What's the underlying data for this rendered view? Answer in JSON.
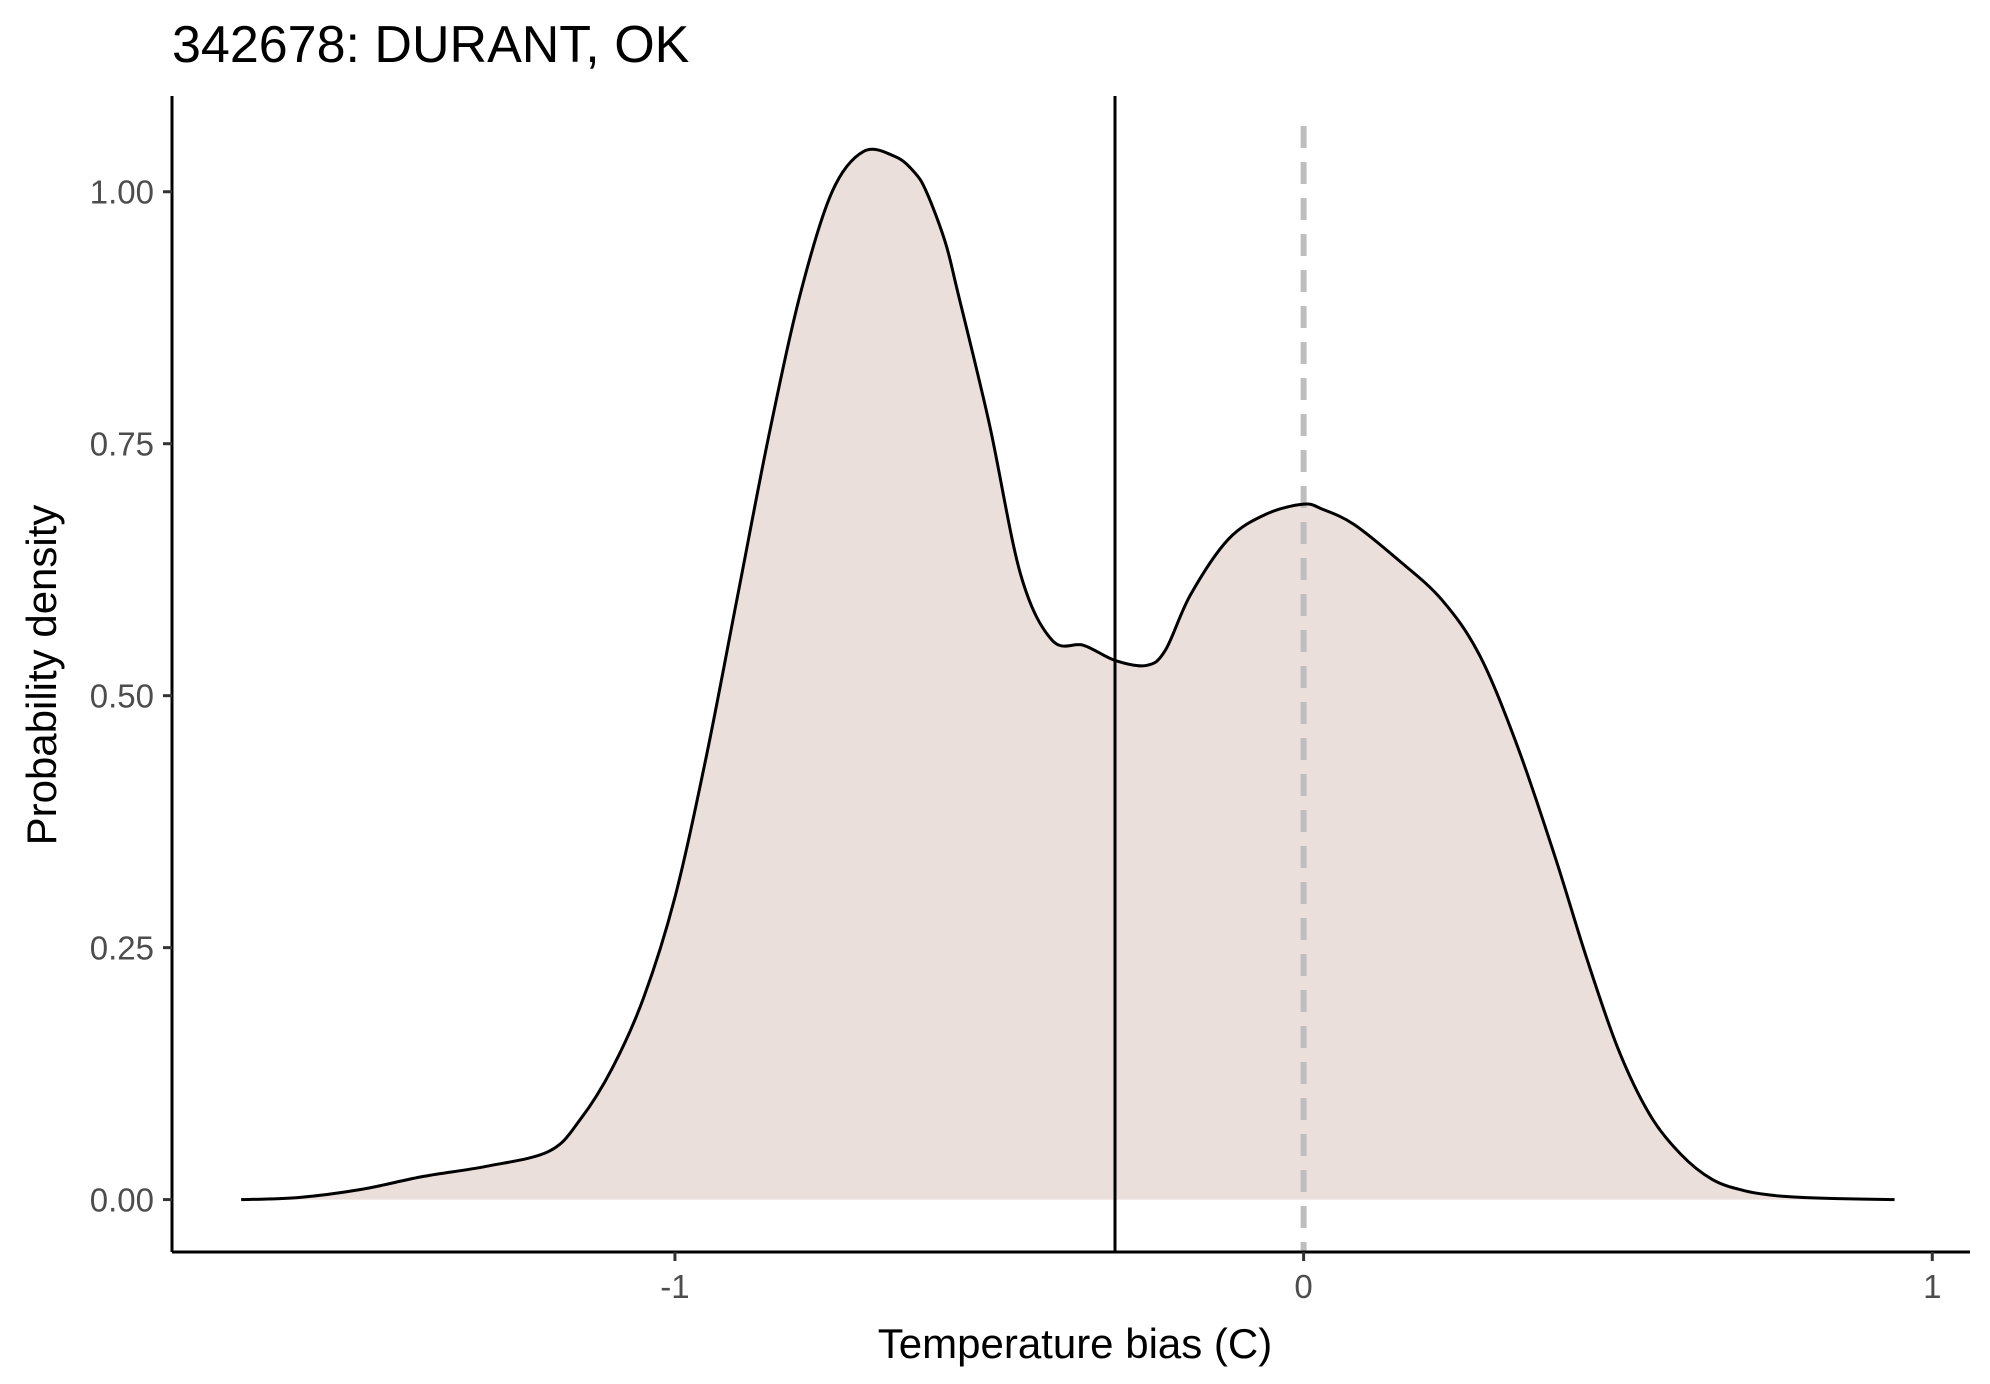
{
  "chart_data": {
    "type": "area",
    "title": "342678: DURANT, OK",
    "xlabel": "Temperature bias (C)",
    "ylabel": "Probability density",
    "xlim": [
      -1.8,
      1.06
    ],
    "ylim": [
      -0.052,
      1.095
    ],
    "x_ticks": [
      -1,
      0,
      1
    ],
    "x_tick_labels": [
      "-1",
      "0",
      "1"
    ],
    "y_ticks": [
      0,
      0.25,
      0.5,
      0.75,
      1.0
    ],
    "y_tick_labels": [
      "0.00",
      "0.25",
      "0.50",
      "0.75",
      "1.00"
    ],
    "grid": false,
    "legend": "none",
    "fill_color": "#ebdfdc",
    "line_color": "#000000",
    "density_curve": {
      "x": [
        -1.69,
        -1.6,
        -1.5,
        -1.4,
        -1.3,
        -1.2,
        -1.15,
        -1.1,
        -1.05,
        -1.0,
        -0.95,
        -0.9,
        -0.85,
        -0.8,
        -0.75,
        -0.7,
        -0.65,
        -0.62,
        -0.6,
        -0.57,
        -0.55,
        -0.5,
        -0.45,
        -0.4,
        -0.35,
        -0.3,
        -0.25,
        -0.22,
        -0.18,
        -0.12,
        -0.06,
        0.0,
        0.03,
        0.08,
        0.15,
        0.22,
        0.28,
        0.34,
        0.4,
        0.45,
        0.5,
        0.55,
        0.6,
        0.65,
        0.7,
        0.75,
        0.8,
        0.85,
        0.94
      ],
      "y": [
        0.0,
        0.002,
        0.01,
        0.023,
        0.033,
        0.048,
        0.08,
        0.13,
        0.2,
        0.3,
        0.44,
        0.6,
        0.76,
        0.9,
        1.0,
        1.04,
        1.035,
        1.02,
        1.0,
        0.95,
        0.9,
        0.77,
        0.62,
        0.555,
        0.55,
        0.535,
        0.53,
        0.545,
        0.6,
        0.655,
        0.68,
        0.69,
        0.685,
        0.67,
        0.635,
        0.595,
        0.54,
        0.45,
        0.34,
        0.24,
        0.15,
        0.085,
        0.045,
        0.02,
        0.009,
        0.004,
        0.002,
        0.001,
        0.0
      ]
    },
    "reference_lines": [
      {
        "name": "mean-line",
        "x": -0.3,
        "style": "solid",
        "color": "#000000"
      },
      {
        "name": "zero-line",
        "x": 0.0,
        "style": "dashed",
        "color": "#bebebe"
      }
    ]
  }
}
